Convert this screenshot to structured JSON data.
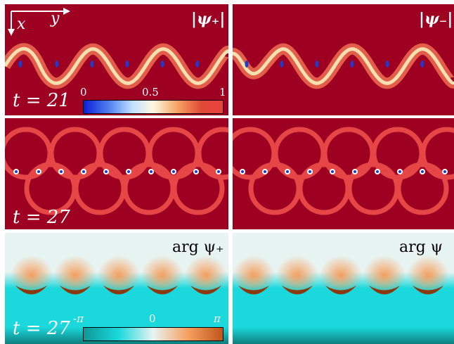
{
  "axes": {
    "x_label": "x",
    "y_label": "y"
  },
  "rows": [
    {
      "time_label": "t = 21",
      "left_label": "|ψ₊|",
      "right_label": "|ψ₋|"
    },
    {
      "time_label": "t = 27"
    },
    {
      "time_label": "t = 27",
      "left_label": "arg  ψ₊",
      "right_label": "arg  ψ"
    }
  ],
  "amplitude_colorbar": {
    "ticks": [
      "0",
      "0.5",
      "1"
    ]
  },
  "phase_colorbar": {
    "ticks": [
      "-π",
      "0",
      "π"
    ]
  },
  "colors": {
    "amplitude_background": "#9e0022",
    "amplitude_ring": "#e64646",
    "vortex_core": "#1a3ccf",
    "phase_light": "#e8f4f2",
    "phase_orange": "#f5a060",
    "phase_cyan": "#1ad8dc",
    "phase_dark_teal": "#0f7e7c"
  }
}
